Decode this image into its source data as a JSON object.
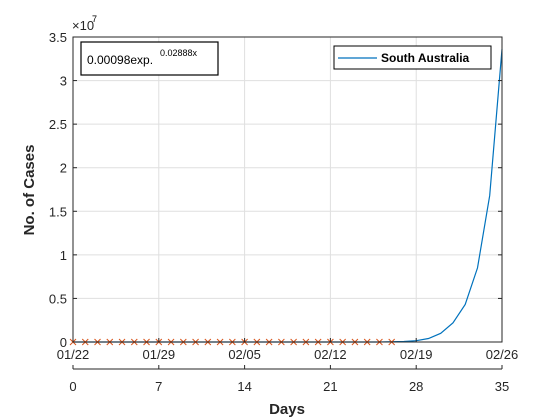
{
  "chart_data": {
    "type": "line",
    "title": "",
    "xlabel": "Days",
    "ylabel": "No. of Cases",
    "xlim": [
      0,
      35
    ],
    "ylim": [
      0,
      35000000
    ],
    "y_exponent_label": "×10",
    "y_exponent": "7",
    "grid": true,
    "x_ticks": [
      0,
      7,
      14,
      21,
      28,
      35
    ],
    "x_tick_labels": [
      "0",
      "7",
      "14",
      "21",
      "28",
      "35"
    ],
    "y_ticks": [
      0,
      5000000,
      10000000,
      15000000,
      20000000,
      25000000,
      30000000,
      35000000
    ],
    "y_tick_labels": [
      "0",
      "0.5",
      "1",
      "1.5",
      "2",
      "2.5",
      "3",
      "3.5"
    ],
    "date_ticks": [
      0,
      7,
      14,
      21,
      28,
      35
    ],
    "date_labels": [
      "01/22",
      "01/29",
      "02/05",
      "02/12",
      "02/19",
      "02/26"
    ],
    "legend_position": "top-right",
    "annotation": {
      "base": "0.00098exp.",
      "exponent": "0.02888x"
    },
    "series": [
      {
        "name": "South Australia",
        "type": "line",
        "color": "#0072BD",
        "x": [
          0,
          1,
          2,
          3,
          4,
          5,
          6,
          7,
          8,
          9,
          10,
          11,
          12,
          13,
          14,
          15,
          16,
          17,
          18,
          19,
          20,
          21,
          22,
          23,
          24,
          25,
          26,
          27,
          28,
          29,
          30,
          31,
          32,
          33,
          34,
          35
        ],
        "values": [
          0,
          0,
          0,
          0,
          0,
          0,
          0,
          0,
          0,
          0,
          0,
          0,
          0,
          0,
          0,
          0,
          0,
          0,
          0,
          0,
          0,
          0,
          0,
          0,
          0,
          0,
          30000,
          60000,
          150000,
          400000,
          1000000,
          2200000,
          4300000,
          8500000,
          16800000,
          33600000
        ]
      },
      {
        "name": "",
        "type": "scatter",
        "marker": "x",
        "color": "#D95319",
        "x": [
          0,
          1,
          2,
          3,
          4,
          5,
          6,
          7,
          8,
          9,
          10,
          11,
          12,
          13,
          14,
          15,
          16,
          17,
          18,
          19,
          20,
          21,
          22,
          23,
          24,
          25,
          26
        ],
        "values": [
          0,
          0,
          0,
          0,
          0,
          0,
          0,
          0,
          0,
          0,
          0,
          0,
          0,
          0,
          0,
          0,
          0,
          0,
          0,
          0,
          0,
          0,
          0,
          0,
          0,
          0,
          0
        ]
      }
    ]
  }
}
